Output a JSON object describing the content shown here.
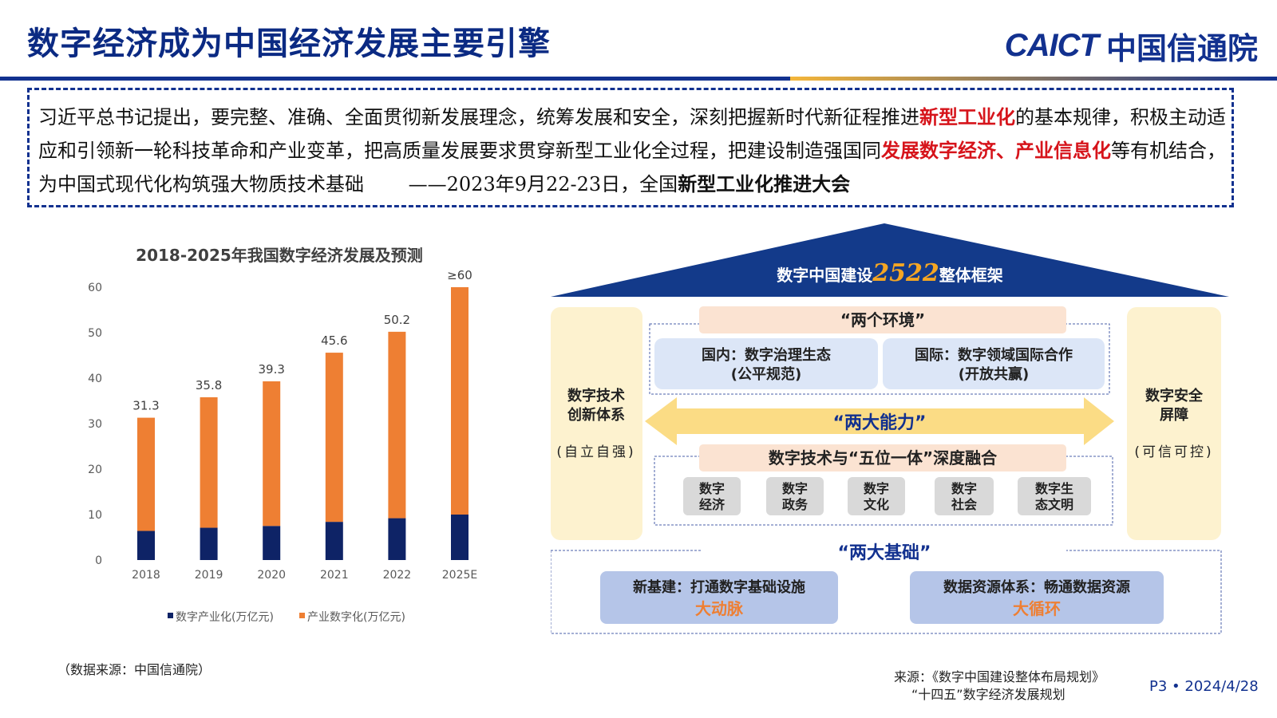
{
  "header": {
    "title": "数字经济成为中国经济发展主要引擎",
    "logo_en": "CAICT",
    "logo_cn": "中国信通院"
  },
  "quote": {
    "p1": "习近平总书记提出，要完整、准确、全面贯彻新发展理念，统筹发展和安全，深刻把握新时代新征程推进",
    "h1": "新型工业化",
    "p2": "的基本规律，积极主动适应和引领新一轮科技革命和产业变革，把高质量发展要求贯穿新型工业化全过程，把建设制造强国同",
    "h2": "发展数字经济、产业信息化",
    "p3": "等有机结合，为中国式现代化构筑强大物质技术基础",
    "attribution": "——2023年9月22-23日，全国",
    "attribution_bold": "新型工业化推进大会"
  },
  "chart_data": {
    "type": "bar",
    "stacked": true,
    "title": "2018-2025年我国数字经济发展及预测",
    "categories": [
      "2018",
      "2019",
      "2020",
      "2021",
      "2022",
      "2025E"
    ],
    "series": [
      {
        "name": "数字产业化(万亿元)",
        "color": "#0e2366",
        "values": [
          6.4,
          7.1,
          7.5,
          8.4,
          9.2,
          10.0
        ]
      },
      {
        "name": "产业数字化(万亿元)",
        "color": "#ee7f33",
        "values": [
          24.9,
          28.7,
          31.8,
          37.2,
          41.0,
          50.0
        ]
      }
    ],
    "totals": [
      "31.3",
      "35.8",
      "39.3",
      "45.6",
      "50.2",
      "≥60"
    ],
    "ylim": [
      0,
      60
    ],
    "yticks": [
      0,
      10,
      20,
      30,
      40,
      50,
      60
    ],
    "legend": "bottom",
    "grid": false
  },
  "source_left": "（数据来源：中国信通院）",
  "framework": {
    "title_prefix": "数字中国建设",
    "title_number": "2522",
    "title_suffix": "整体框架",
    "left_pillar": {
      "l1": "数字技术",
      "l2": "创新体系",
      "sub": "(自立自强)"
    },
    "right_pillar": {
      "l1": "数字安全",
      "l2": "屏障",
      "sub": "(可信可控)"
    },
    "env_title": "“两个环境”",
    "env_domestic": {
      "l1": "国内：数字治理生态",
      "l2": "(公平规范)"
    },
    "env_international": {
      "l1": "国际：数字领域国际合作",
      "l2": "(开放共赢)"
    },
    "capability_title": "“两大能力”",
    "fusion_title": "数字技术与“五位一体”深度融合",
    "fusion_items": [
      {
        "l1": "数字",
        "l2": "经济"
      },
      {
        "l1": "数字",
        "l2": "政务"
      },
      {
        "l1": "数字",
        "l2": "文化"
      },
      {
        "l1": "数字",
        "l2": "社会"
      },
      {
        "l1": "数字生",
        "l2": "态文明"
      }
    ],
    "foundation_title": "“两大基础”",
    "foundation_left": {
      "l1": "新基建：打通数字基础设施",
      "l2": "大动脉"
    },
    "foundation_right": {
      "l1": "数据资源体系：畅通数据资源",
      "l2": "大循环"
    }
  },
  "source_right": {
    "l1": "来源：《数字中国建设整体布局规划》",
    "l2": "“十四五”数字经济发展规划"
  },
  "page": "P3 • 2024/4/28"
}
